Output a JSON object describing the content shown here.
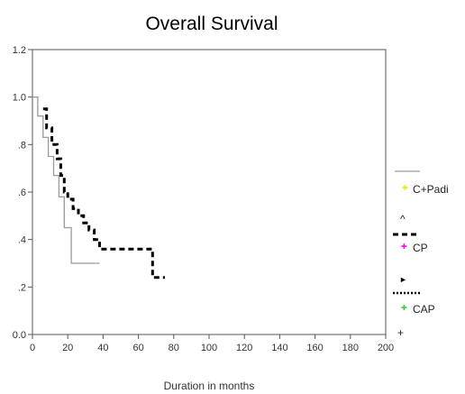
{
  "chart_data": {
    "type": "line",
    "title": "Overall Survival",
    "xlabel": "Duration in months",
    "ylabel": "",
    "xlim": [
      0,
      200
    ],
    "ylim": [
      0.0,
      1.2
    ],
    "x_ticks": [
      0,
      20,
      40,
      60,
      80,
      100,
      120,
      140,
      160,
      180,
      200
    ],
    "y_ticks": [
      {
        "value": 0.0,
        "label": "0.0"
      },
      {
        "value": 0.2,
        "label": ".2"
      },
      {
        "value": 0.4,
        "label": ".4"
      },
      {
        "value": 0.6,
        "label": ".6"
      },
      {
        "value": 0.8,
        "label": ".8"
      },
      {
        "value": 1.0,
        "label": "1.0"
      },
      {
        "value": 1.2,
        "label": "1.2"
      }
    ],
    "grid": false,
    "legend_position": "right",
    "series": [
      {
        "name": "C+Padi",
        "line_style": "solid",
        "color": "#9a9a9a",
        "marker_color": "#e8e800",
        "x": [
          0,
          3,
          3,
          6,
          6,
          9,
          9,
          12,
          12,
          15,
          15,
          18,
          18,
          22,
          22,
          38
        ],
        "y": [
          1.0,
          1.0,
          0.92,
          0.92,
          0.83,
          0.83,
          0.75,
          0.75,
          0.67,
          0.67,
          0.58,
          0.58,
          0.45,
          0.45,
          0.3,
          0.3
        ]
      },
      {
        "name": "CP",
        "line_style": "dashed",
        "color": "#000000",
        "marker_color": "#ff00ff",
        "x": [
          6,
          8,
          8,
          11,
          11,
          14,
          14,
          16,
          16,
          18,
          18,
          20,
          20,
          23,
          23,
          26,
          26,
          29,
          29,
          32,
          32,
          35,
          35,
          38,
          38,
          68,
          68,
          75
        ],
        "y": [
          0.95,
          0.95,
          0.87,
          0.87,
          0.8,
          0.8,
          0.74,
          0.74,
          0.67,
          0.67,
          0.6,
          0.6,
          0.57,
          0.57,
          0.53,
          0.53,
          0.5,
          0.5,
          0.47,
          0.47,
          0.44,
          0.44,
          0.4,
          0.4,
          0.36,
          0.36,
          0.24,
          0.24
        ]
      },
      {
        "name": "CAP",
        "line_style": "dotted",
        "color": "#000000",
        "marker_color": "#33cc33",
        "x": [],
        "y": []
      }
    ]
  },
  "legend_markers": [
    "^",
    "+"
  ]
}
